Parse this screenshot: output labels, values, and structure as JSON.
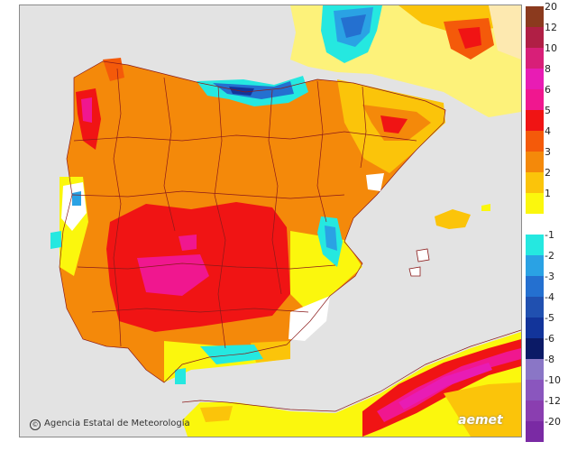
{
  "map": {
    "credit": "Agencia Estatal de Meteorología",
    "logo": "aemet"
  },
  "legend": {
    "items": [
      {
        "label": "20",
        "color": "#8b3a1e"
      },
      {
        "label": "12",
        "color": "#b01f45"
      },
      {
        "label": "10",
        "color": "#d81f78"
      },
      {
        "label": "8",
        "color": "#e81cb4"
      },
      {
        "label": "6",
        "color": "#f0178f"
      },
      {
        "label": "5",
        "color": "#f01414"
      },
      {
        "label": "4",
        "color": "#f45a0a"
      },
      {
        "label": "3",
        "color": "#f4890a"
      },
      {
        "label": "2",
        "color": "#fbc40a"
      },
      {
        "label": "1",
        "color": "#fbf70d"
      },
      {
        "label": "",
        "color": "#ffffff"
      },
      {
        "label": "-1",
        "color": "#25e8e0"
      },
      {
        "label": "-2",
        "color": "#2aa2e4"
      },
      {
        "label": "-3",
        "color": "#2470d0"
      },
      {
        "label": "-4",
        "color": "#2050b0"
      },
      {
        "label": "-5",
        "color": "#12349a"
      },
      {
        "label": "-6",
        "color": "#0b1a66"
      },
      {
        "label": "-8",
        "color": "#8a76c6"
      },
      {
        "label": "-10",
        "color": "#8a56be"
      },
      {
        "label": "-12",
        "color": "#8a3eb0"
      },
      {
        "label": "-20",
        "color": "#7a2aa4"
      }
    ]
  }
}
